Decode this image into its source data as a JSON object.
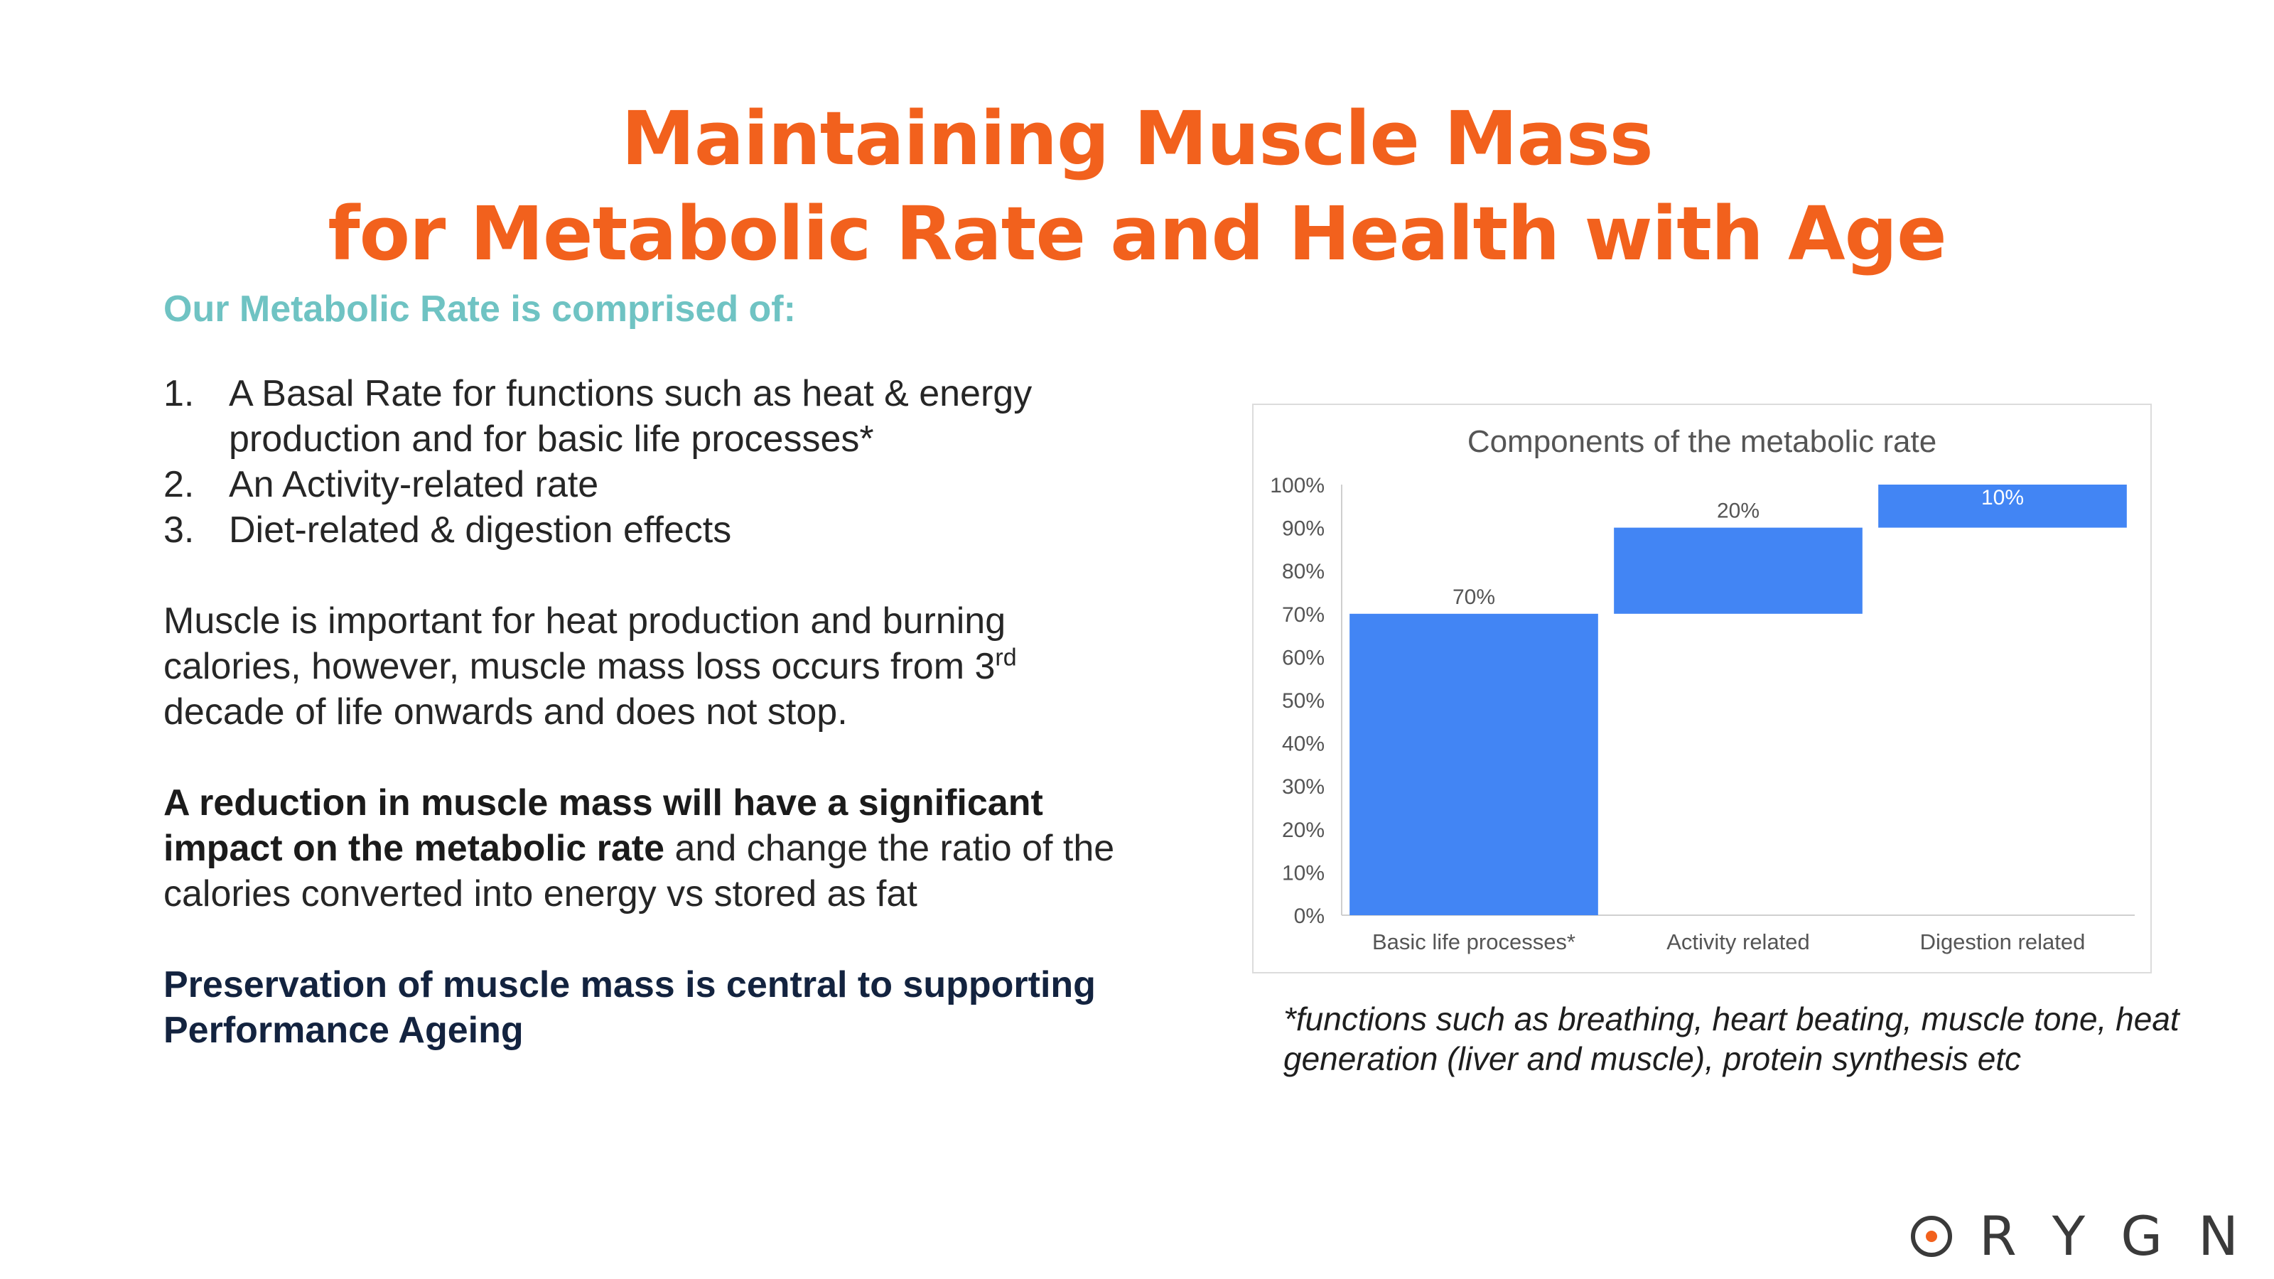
{
  "title": {
    "line1": "Maintaining Muscle Mass",
    "line2": "for Metabolic Rate and Health with Age"
  },
  "left": {
    "subhead": "Our Metabolic Rate is comprised of:",
    "list": [
      {
        "num": "1.",
        "text": "A Basal Rate for functions such as heat & energy production and for basic life processes*"
      },
      {
        "num": "2.",
        "text": "An Activity-related rate"
      },
      {
        "num": "3.",
        "text": "Diet-related & digestion effects"
      }
    ],
    "para1_a": "Muscle is important for heat production and burning calories, however, muscle mass loss occurs from 3",
    "para1_sup": "rd",
    "para1_b": " decade of life onwards and does not stop.",
    "para2_bold": "A reduction in muscle mass will have a significant impact on the metabolic rate",
    "para2_rest": " and change the ratio of the calories converted into energy vs stored as fat",
    "para3": "Preservation of muscle mass is central to supporting Performance Ageing"
  },
  "chart_data": {
    "type": "bar",
    "subtype": "waterfall",
    "title": "Components of the metabolic rate",
    "categories": [
      "Basic life processes*",
      "Activity related",
      "Digestion related"
    ],
    "values": [
      70,
      20,
      10
    ],
    "bases": [
      0,
      70,
      90
    ],
    "data_labels": [
      "70%",
      "20%",
      "10%"
    ],
    "ylim": [
      0,
      100
    ],
    "yticks": [
      "0%",
      "10%",
      "20%",
      "30%",
      "40%",
      "50%",
      "60%",
      "70%",
      "80%",
      "90%",
      "100%"
    ],
    "grid": false,
    "bar_color": "#4285f4"
  },
  "footnote": "*functions such as breathing, heart beating, muscle tone, heat generation (liver and muscle), protein synthesis etc",
  "logo": {
    "letters": [
      "R",
      "Y",
      "G",
      "N"
    ]
  },
  "colors": {
    "accent": "#f2611d",
    "subhead": "#6fc3c3"
  }
}
